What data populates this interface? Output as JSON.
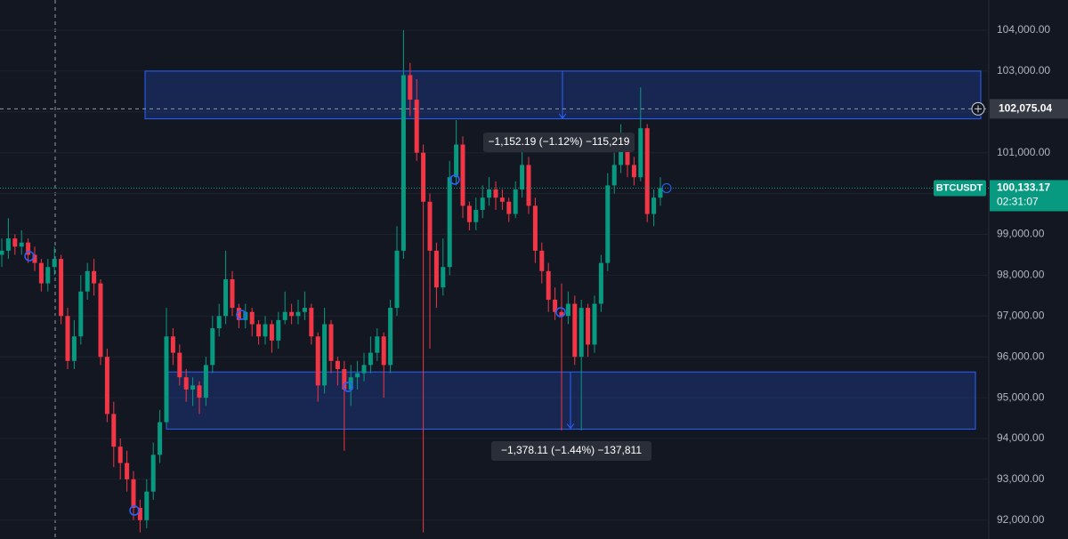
{
  "chart_data": {
    "type": "candlestick",
    "symbol": "BTCUSDT",
    "up_color": "#089981",
    "down_color": "#f23645",
    "grid": true,
    "ylim": [
      91600,
      104700
    ],
    "yticks": [
      {
        "value": 92000,
        "label": "92,000.00"
      },
      {
        "value": 93000,
        "label": "93,000.00"
      },
      {
        "value": 94000,
        "label": "94,000.00"
      },
      {
        "value": 95000,
        "label": "95,000.00"
      },
      {
        "value": 96000,
        "label": "96,000.00"
      },
      {
        "value": 97000,
        "label": "97,000.00"
      },
      {
        "value": 98000,
        "label": "98,000.00"
      },
      {
        "value": 99000,
        "label": "99,000.00"
      },
      {
        "value": 100000,
        "label": "100,000.00"
      },
      {
        "value": 101000,
        "label": "101,000.00"
      },
      {
        "value": 102000,
        "label": "102,000.00"
      },
      {
        "value": 103000,
        "label": "103,000.00"
      },
      {
        "value": 104000,
        "label": "104,000.00"
      }
    ],
    "open": [
      98500,
      98600,
      98900,
      98700,
      98800,
      98500,
      98300,
      97800,
      98200,
      98400,
      97000,
      95900,
      96500,
      97600,
      98100,
      97800,
      96000,
      94600,
      93800,
      93400,
      93000,
      92300,
      92000,
      92700,
      93600,
      94400,
      96500,
      96100,
      95500,
      95200,
      95300,
      95000,
      95800,
      96700,
      97000,
      97900,
      97200,
      96900,
      97100,
      96800,
      96500,
      96800,
      96400,
      96900,
      97100,
      97000,
      97100,
      97200,
      96500,
      95300,
      96800,
      95900,
      95700,
      95200,
      95500,
      95600,
      95800,
      96100,
      96500,
      95800,
      97200,
      98600,
      102900,
      102300,
      101000,
      99800,
      98600,
      97700,
      98200,
      100400,
      101200,
      99700,
      99300,
      99600,
      99900,
      100100,
      99900,
      99800,
      99500,
      100100,
      100700,
      99700,
      98600,
      98100,
      97400,
      97100,
      97000,
      97300,
      96000,
      97200,
      96300,
      97300,
      98300,
      100200,
      100700,
      101100,
      100700,
      100400,
      101600,
      99500,
      99900
    ],
    "high": [
      98900,
      99400,
      99000,
      99100,
      98900,
      98700,
      98400,
      98400,
      98700,
      98500,
      97200,
      96900,
      98000,
      98300,
      98400,
      97900,
      96200,
      94900,
      94000,
      93700,
      93200,
      92500,
      93000,
      93900,
      94700,
      97200,
      96700,
      96300,
      95700,
      95500,
      95400,
      96000,
      97000,
      97300,
      98600,
      98100,
      97300,
      97300,
      97200,
      96900,
      97000,
      96900,
      97100,
      97600,
      97300,
      97400,
      97600,
      97300,
      96600,
      97200,
      96900,
      96000,
      95900,
      95800,
      95900,
      96100,
      96500,
      96700,
      96600,
      97400,
      99200,
      104000,
      103200,
      102800,
      101200,
      100000,
      98800,
      98900,
      100800,
      101800,
      101400,
      99800,
      99900,
      100200,
      100400,
      100300,
      100100,
      99900,
      100300,
      101100,
      100900,
      99900,
      98800,
      98300,
      97700,
      97800,
      97600,
      97500,
      97400,
      97300,
      97500,
      98500,
      100500,
      101000,
      101700,
      101200,
      100900,
      102600,
      101700,
      100100,
      100400
    ],
    "low": [
      98200,
      98400,
      98500,
      98500,
      98300,
      98100,
      97600,
      97600,
      98000,
      96800,
      95700,
      95700,
      96300,
      97400,
      97500,
      95800,
      94400,
      93300,
      93000,
      92700,
      92000,
      91700,
      91800,
      92500,
      93400,
      94300,
      95800,
      95300,
      94900,
      94800,
      94600,
      94800,
      95600,
      96500,
      96800,
      97000,
      96700,
      96700,
      96500,
      96300,
      96300,
      96100,
      96200,
      96800,
      96800,
      96800,
      96900,
      96300,
      94900,
      95100,
      95600,
      95300,
      93700,
      94800,
      95200,
      95400,
      95600,
      95900,
      95000,
      95600,
      97000,
      98400,
      101900,
      100800,
      91700,
      96200,
      97200,
      97500,
      98000,
      100200,
      99400,
      99100,
      99100,
      99400,
      99700,
      99600,
      99600,
      99300,
      99400,
      99900,
      99500,
      98300,
      97800,
      97100,
      96900,
      94200,
      96800,
      95800,
      94200,
      96000,
      96100,
      97100,
      98100,
      100000,
      100500,
      100400,
      100200,
      100300,
      99300,
      99200,
      99700
    ],
    "close": [
      98600,
      98900,
      98700,
      98800,
      98500,
      98300,
      97800,
      98200,
      98400,
      97000,
      95900,
      96500,
      97600,
      98100,
      97800,
      96000,
      94600,
      93800,
      93400,
      93000,
      92300,
      92000,
      92700,
      93600,
      94400,
      96500,
      96100,
      95500,
      95200,
      95300,
      95000,
      95800,
      96700,
      97000,
      97900,
      97200,
      96900,
      97100,
      96800,
      96500,
      96800,
      96400,
      96900,
      97100,
      97000,
      97100,
      97200,
      96500,
      95300,
      96800,
      95900,
      95700,
      95200,
      95500,
      95600,
      95800,
      96100,
      96500,
      95800,
      97200,
      98600,
      102900,
      102300,
      101000,
      99800,
      98600,
      97700,
      98200,
      100400,
      101200,
      99700,
      99300,
      99600,
      99900,
      100100,
      99900,
      99800,
      99500,
      100100,
      100700,
      99700,
      98600,
      98100,
      97400,
      97100,
      97000,
      97300,
      96000,
      97200,
      96300,
      97300,
      98300,
      100200,
      100700,
      101100,
      100700,
      100400,
      101600,
      99500,
      99900,
      100133.17
    ],
    "last_price": {
      "value": 100133.17,
      "label": "100,133.17"
    },
    "countdown": "02:31:07",
    "crosshair_price": {
      "value": 102075.04,
      "label": "102,075.04"
    },
    "zones": [
      {
        "top": 103000,
        "bottom": 101830
      },
      {
        "top": 95630,
        "bottom": 94230
      }
    ],
    "measures": [
      {
        "from": 103000,
        "to": 101847.81,
        "label": "−1,152.19 (−1.12%) −115,219"
      },
      {
        "from": 95630,
        "to": 94251.89,
        "label": "−1,378.11 (−1.44%) −137,811"
      }
    ]
  }
}
